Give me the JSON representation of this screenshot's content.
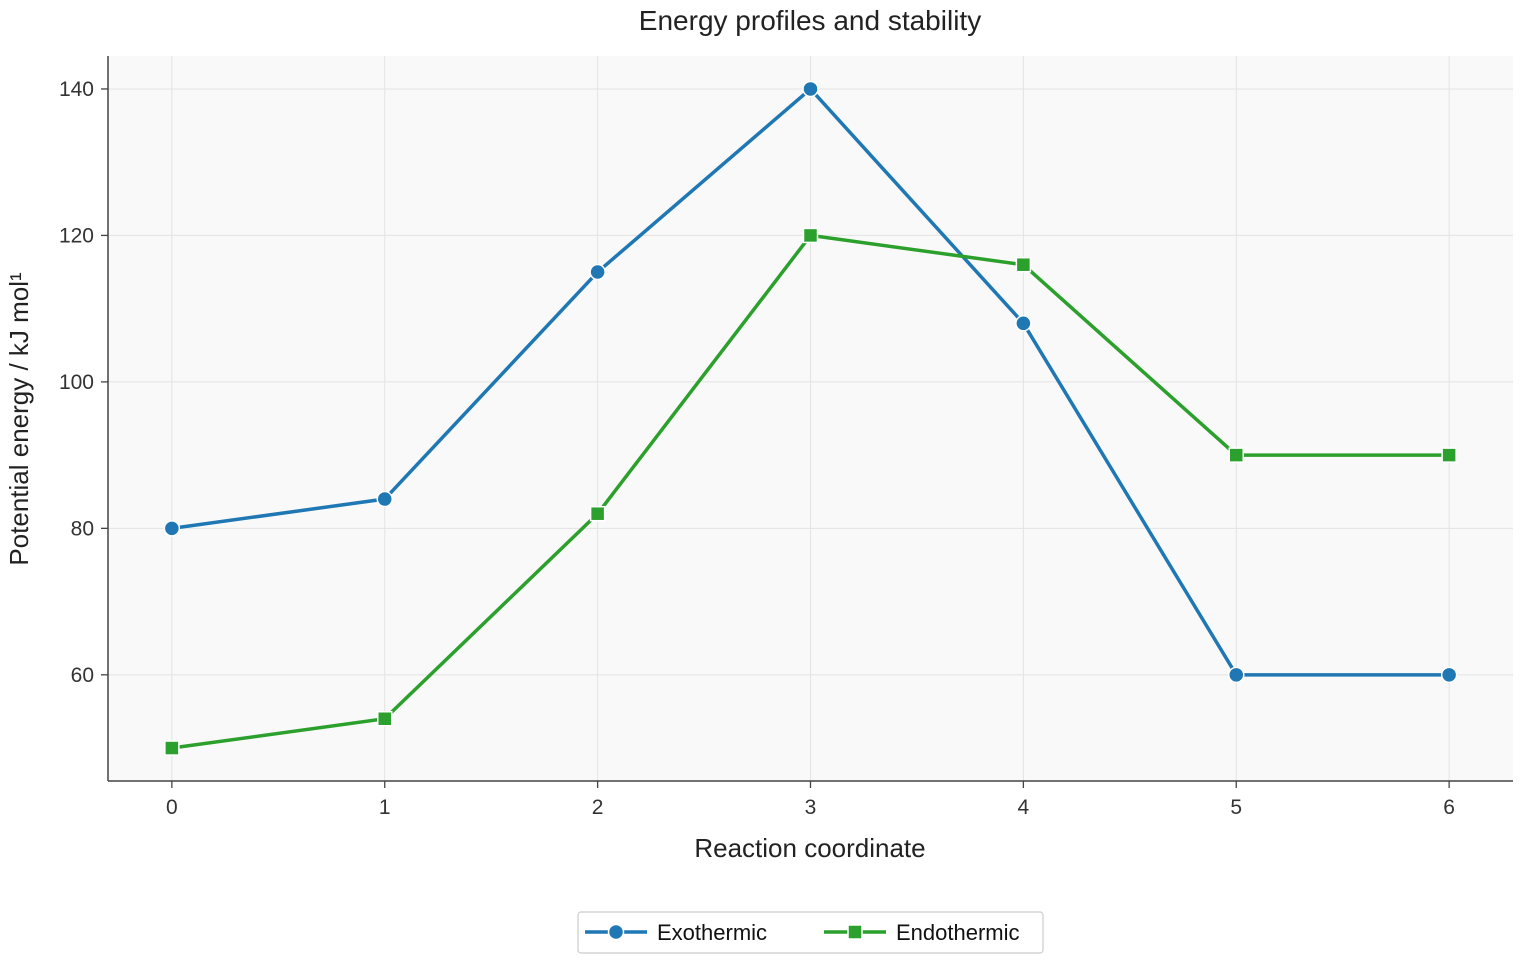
{
  "chart_data": {
    "type": "line",
    "title": "Energy profiles and stability",
    "xlabel": "Reaction coordinate",
    "ylabel": "Potential energy / kJ mol¹",
    "x": [
      0,
      1,
      2,
      3,
      4,
      5,
      6
    ],
    "x_ticks": [
      0,
      1,
      2,
      3,
      4,
      5,
      6
    ],
    "y_ticks": [
      60,
      80,
      100,
      120,
      140
    ],
    "xlim": [
      -0.3,
      6.3
    ],
    "ylim": [
      45.5,
      144.5
    ],
    "grid": true,
    "legend_position": "bottom-center",
    "series": [
      {
        "name": "Exothermic",
        "marker": "circle",
        "color": "#1f77b4",
        "values": [
          80,
          84,
          115,
          140,
          108,
          60,
          60
        ]
      },
      {
        "name": "Endothermic",
        "marker": "square",
        "color": "#2ca02c",
        "values": [
          50,
          54,
          82,
          120,
          116,
          90,
          90
        ]
      }
    ]
  }
}
